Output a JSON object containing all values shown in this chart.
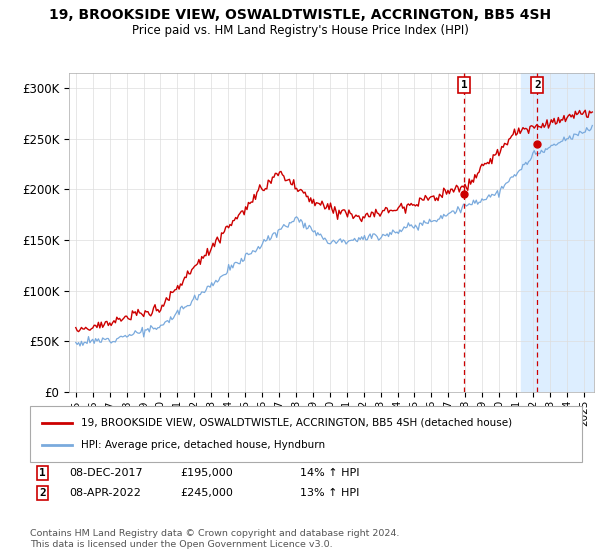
{
  "title": "19, BROOKSIDE VIEW, OSWALDTWISTLE, ACCRINGTON, BB5 4SH",
  "subtitle": "Price paid vs. HM Land Registry's House Price Index (HPI)",
  "ylabel_ticks": [
    "£0",
    "£50K",
    "£100K",
    "£150K",
    "£200K",
    "£250K",
    "£300K"
  ],
  "ytick_values": [
    0,
    50000,
    100000,
    150000,
    200000,
    250000,
    300000
  ],
  "ylim": [
    0,
    315000
  ],
  "line1_color": "#cc0000",
  "line2_color": "#7aaadd",
  "background_color": "#ffffff",
  "grid_color": "#dddddd",
  "legend_label1": "19, BROOKSIDE VIEW, OSWALDTWISTLE, ACCRINGTON, BB5 4SH (detached house)",
  "legend_label2": "HPI: Average price, detached house, Hyndburn",
  "annotation1_date": "08-DEC-2017",
  "annotation1_price": "£195,000",
  "annotation1_pct": "14% ↑ HPI",
  "annotation2_date": "08-APR-2022",
  "annotation2_price": "£245,000",
  "annotation2_pct": "13% ↑ HPI",
  "footer": "Contains HM Land Registry data © Crown copyright and database right 2024.\nThis data is licensed under the Open Government Licence v3.0.",
  "sale1_x": 2017.92,
  "sale1_y": 195000,
  "sale2_x": 2022.25,
  "sale2_y": 245000,
  "vline1_x": 2017.92,
  "vline2_x": 2022.25,
  "highlight_xmin": 2021.3,
  "highlight_xmax": 2025.6,
  "highlight_color": "#ddeeff",
  "xlim_left": 1994.6,
  "xlim_right": 2025.6
}
